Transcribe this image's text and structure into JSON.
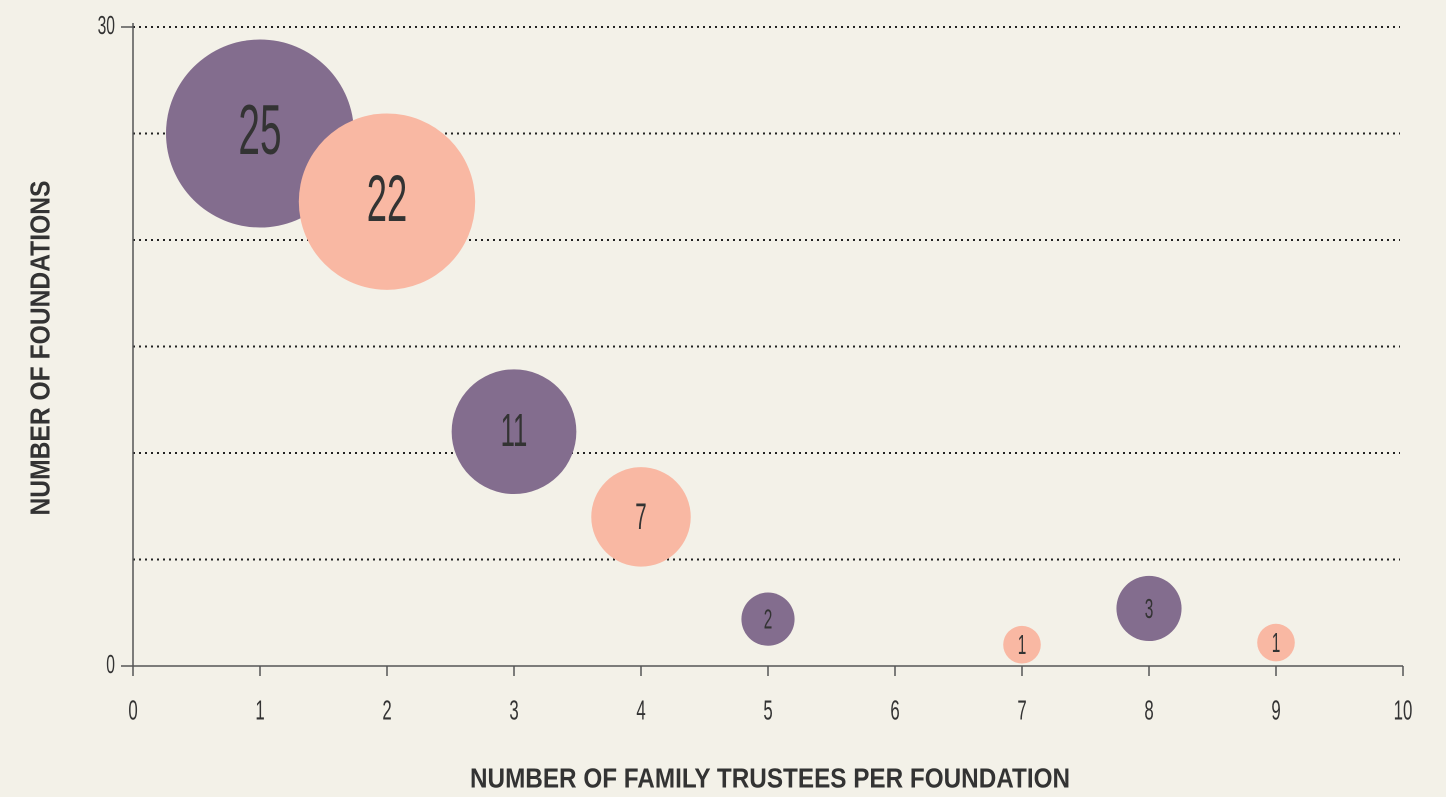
{
  "chart_data": {
    "type": "scatter",
    "xlabel": "NUMBER OF FAMILY TRUSTEES PER FOUNDATION",
    "ylabel": "NUMBER OF FOUNDATIONS",
    "x": [
      1,
      2,
      3,
      4,
      5,
      7,
      8,
      9
    ],
    "values": [
      25,
      21.8,
      11,
      7,
      2.2,
      1,
      2.7,
      1.1
    ],
    "sizes": [
      25,
      22,
      11,
      7,
      2,
      1,
      3,
      1
    ],
    "colors": [
      "#836d8e",
      "#f9b8a3",
      "#836d8e",
      "#f9b8a3",
      "#836d8e",
      "#f9b8a3",
      "#836d8e",
      "#f9b8a3"
    ],
    "xlim": [
      0,
      10
    ],
    "xticks": [
      0,
      1,
      2,
      3,
      4,
      5,
      6,
      7,
      8,
      9,
      10
    ],
    "ylim": [
      0,
      30
    ],
    "yticks": [
      0,
      30
    ],
    "ygrid": [
      5,
      10,
      15,
      20,
      25,
      30
    ]
  }
}
